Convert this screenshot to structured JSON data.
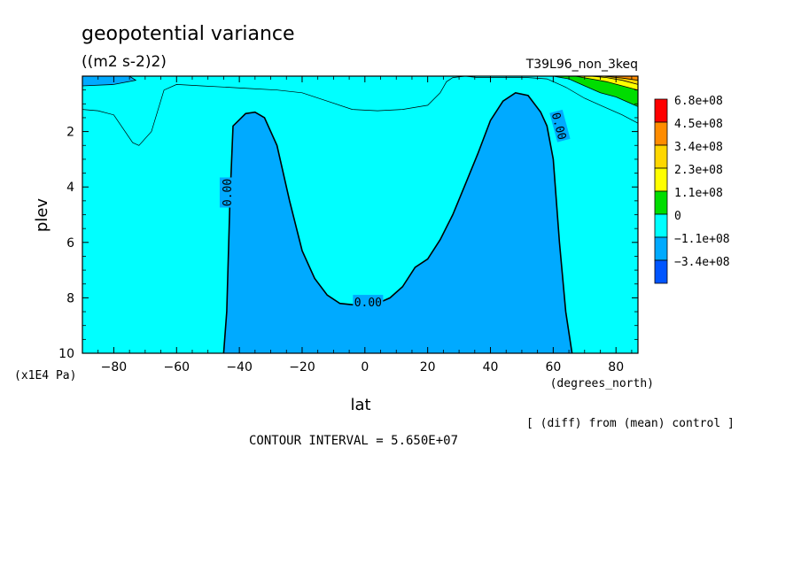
{
  "chart_data": {
    "type": "heatmap",
    "title": "geopotential variance",
    "units": "((m2 s-2)2)",
    "run_label": "T39L96_non_3keq",
    "xlabel": "lat",
    "x_units": "(degrees_north)",
    "ylabel": "plev",
    "y_units": "(x1E4 Pa)",
    "xlim": [
      -90,
      87
    ],
    "ylim": [
      10,
      0
    ],
    "x_ticks": [
      -80,
      -60,
      -40,
      -20,
      0,
      20,
      40,
      60,
      80
    ],
    "y_ticks": [
      2,
      4,
      6,
      8,
      10
    ],
    "contour_label": "0.00",
    "contour_interval_text": "CONTOUR INTERVAL = 5.650E+07",
    "diff_note": "[ (diff) from (mean) control ]",
    "colorbar": {
      "labels": [
        "6.8e+08",
        "4.5e+08",
        "3.4e+08",
        "2.3e+08",
        "1.1e+08",
        "0",
        "-1.1e+08",
        "-3.4e+08"
      ],
      "colors": [
        "#ff0000",
        "#ff8c00",
        "#ffd700",
        "#ffff00",
        "#00dd00",
        "#00ffff",
        "#00aaff",
        "#0055ff"
      ]
    },
    "background_color": "#00ffff",
    "negative_color": "#00aaff",
    "zero_contour": {
      "lat": [
        -45,
        -44,
        -43,
        -42,
        -38,
        -35,
        -32,
        -28,
        -24,
        -20,
        -16,
        -12,
        -8,
        -4,
        0,
        4,
        8,
        12,
        16,
        20,
        24,
        28,
        32,
        36,
        40,
        44,
        48,
        52,
        56,
        58,
        60,
        62,
        64,
        66
      ],
      "plev": [
        10,
        8.5,
        4.5,
        1.8,
        1.35,
        1.3,
        1.5,
        2.5,
        4.5,
        6.3,
        7.3,
        7.9,
        8.2,
        8.25,
        8.25,
        8.2,
        8.0,
        7.6,
        6.9,
        6.6,
        5.9,
        5.0,
        3.9,
        2.8,
        1.6,
        0.9,
        0.6,
        0.7,
        1.3,
        1.8,
        3.0,
        6.0,
        8.5,
        10
      ]
    },
    "upper_pos_contour": {
      "lat": [
        -90,
        -85,
        -80,
        -74,
        -72,
        -68,
        -64,
        -60,
        -52,
        -44,
        -36,
        -28,
        -20,
        -12,
        -4,
        4,
        12,
        20,
        24,
        26,
        28,
        32,
        36,
        44,
        52,
        58,
        64,
        70,
        76,
        82,
        87
      ],
      "plev": [
        1.2,
        1.25,
        1.4,
        2.4,
        2.5,
        2.0,
        0.5,
        0.3,
        0.35,
        0.4,
        0.45,
        0.5,
        0.6,
        0.9,
        1.2,
        1.25,
        1.2,
        1.05,
        0.6,
        0.2,
        0.05,
        0.0,
        0.05,
        0.05,
        0.05,
        0.1,
        0.4,
        0.8,
        1.1,
        1.4,
        1.7
      ]
    },
    "negative_patch_sh": {
      "lat": [
        -90,
        -75,
        -73,
        -80,
        -90
      ],
      "plev": [
        0.0,
        0.0,
        0.15,
        0.3,
        0.35
      ]
    },
    "high_latitude_bands": [
      {
        "value_color": "#00dd00",
        "lat": [
          60,
          65,
          70,
          75,
          80,
          87,
          87
        ],
        "plev": [
          0.0,
          0.1,
          0.35,
          0.6,
          0.75,
          1.1,
          0.0
        ]
      },
      {
        "value_color": "#ffff00",
        "lat": [
          67,
          72,
          77,
          82,
          87,
          87
        ],
        "plev": [
          0.0,
          0.1,
          0.2,
          0.35,
          0.5,
          0.0
        ]
      },
      {
        "value_color": "#ffd700",
        "lat": [
          72,
          77,
          82,
          87,
          87
        ],
        "plev": [
          0.0,
          0.05,
          0.15,
          0.3,
          0.0
        ]
      },
      {
        "value_color": "#ff8c00",
        "lat": [
          76,
          82,
          87,
          87
        ],
        "plev": [
          0.0,
          0.07,
          0.15,
          0.0
        ]
      }
    ]
  }
}
